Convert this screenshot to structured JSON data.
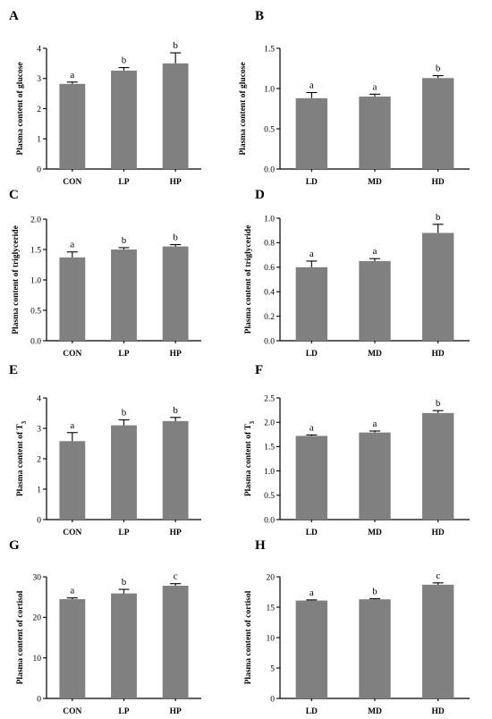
{
  "figure": {
    "bar_color": "#808080",
    "axis_color": "#000000"
  },
  "chart_data": [
    {
      "panel": "A",
      "type": "bar",
      "ylabel": "Plasma content of glucose",
      "categories": [
        "CON",
        "LP",
        "HP"
      ],
      "values": [
        2.82,
        3.26,
        3.5
      ],
      "errors": [
        0.06,
        0.1,
        0.35
      ],
      "letters": [
        "a",
        "b",
        "b"
      ],
      "ylim": [
        0,
        4
      ],
      "yticks": [
        "0",
        "1",
        "2",
        "3",
        "4"
      ]
    },
    {
      "panel": "B",
      "type": "bar",
      "ylabel": "Plasma content of glucose",
      "categories": [
        "LD",
        "MD",
        "HD"
      ],
      "values": [
        0.88,
        0.9,
        1.13
      ],
      "errors": [
        0.07,
        0.03,
        0.03
      ],
      "letters": [
        "a",
        "a",
        "b"
      ],
      "ylim": [
        0,
        1.5
      ],
      "yticks": [
        "0.0",
        "0.5",
        "1.0",
        "1.5"
      ]
    },
    {
      "panel": "C",
      "type": "bar",
      "ylabel": "Plasma content of triglyceride",
      "categories": [
        "CON",
        "LP",
        "HP"
      ],
      "values": [
        1.37,
        1.5,
        1.55
      ],
      "errors": [
        0.09,
        0.03,
        0.03
      ],
      "letters": [
        "a",
        "b",
        "b"
      ],
      "ylim": [
        0,
        2.0
      ],
      "yticks": [
        "0.0",
        "0.5",
        "1.0",
        "1.5",
        "2.0"
      ]
    },
    {
      "panel": "D",
      "type": "bar",
      "ylabel": "Plasma content of triglyceride",
      "categories": [
        "LD",
        "MD",
        "HD"
      ],
      "values": [
        0.6,
        0.65,
        0.88
      ],
      "errors": [
        0.05,
        0.02,
        0.07
      ],
      "letters": [
        "a",
        "a",
        "b"
      ],
      "ylim": [
        0,
        1.0
      ],
      "yticks": [
        "0.0",
        "0.2",
        "0.4",
        "0.6",
        "0.8",
        "1.0"
      ]
    },
    {
      "panel": "E",
      "type": "bar",
      "ylabel": "Plasma content of T",
      "ylabel_sub": "3",
      "categories": [
        "CON",
        "LP",
        "HP"
      ],
      "values": [
        2.58,
        3.1,
        3.24
      ],
      "errors": [
        0.28,
        0.18,
        0.12
      ],
      "letters": [
        "a",
        "b",
        "b"
      ],
      "ylim": [
        0,
        4
      ],
      "yticks": [
        "0",
        "1",
        "2",
        "3",
        "4"
      ]
    },
    {
      "panel": "F",
      "type": "bar",
      "ylabel": "Plasma content of T",
      "ylabel_sub": "3",
      "categories": [
        "LD",
        "MD",
        "HD"
      ],
      "values": [
        1.72,
        1.79,
        2.19
      ],
      "errors": [
        0.02,
        0.03,
        0.05
      ],
      "letters": [
        "a",
        "a",
        "b"
      ],
      "ylim": [
        0,
        2.5
      ],
      "yticks": [
        "0.0",
        "0.5",
        "1.0",
        "1.5",
        "2.0",
        "2.5"
      ]
    },
    {
      "panel": "G",
      "type": "bar",
      "ylabel": "Plasma content of cortisol",
      "categories": [
        "CON",
        "LP",
        "HP"
      ],
      "values": [
        24.5,
        25.9,
        27.8
      ],
      "errors": [
        0.3,
        1.0,
        0.5
      ],
      "letters": [
        "a",
        "b",
        "c"
      ],
      "ylim": [
        0,
        30
      ],
      "yticks": [
        "0",
        "10",
        "20",
        "30"
      ]
    },
    {
      "panel": "H",
      "type": "bar",
      "ylabel": "Plasma content of cortisol",
      "categories": [
        "LD",
        "MD",
        "HD"
      ],
      "values": [
        16.1,
        16.3,
        18.7
      ],
      "errors": [
        0.1,
        0.1,
        0.3
      ],
      "letters": [
        "a",
        "b",
        "c"
      ],
      "ylim": [
        0,
        20
      ],
      "yticks": [
        "0",
        "5",
        "10",
        "15",
        "20"
      ]
    }
  ]
}
